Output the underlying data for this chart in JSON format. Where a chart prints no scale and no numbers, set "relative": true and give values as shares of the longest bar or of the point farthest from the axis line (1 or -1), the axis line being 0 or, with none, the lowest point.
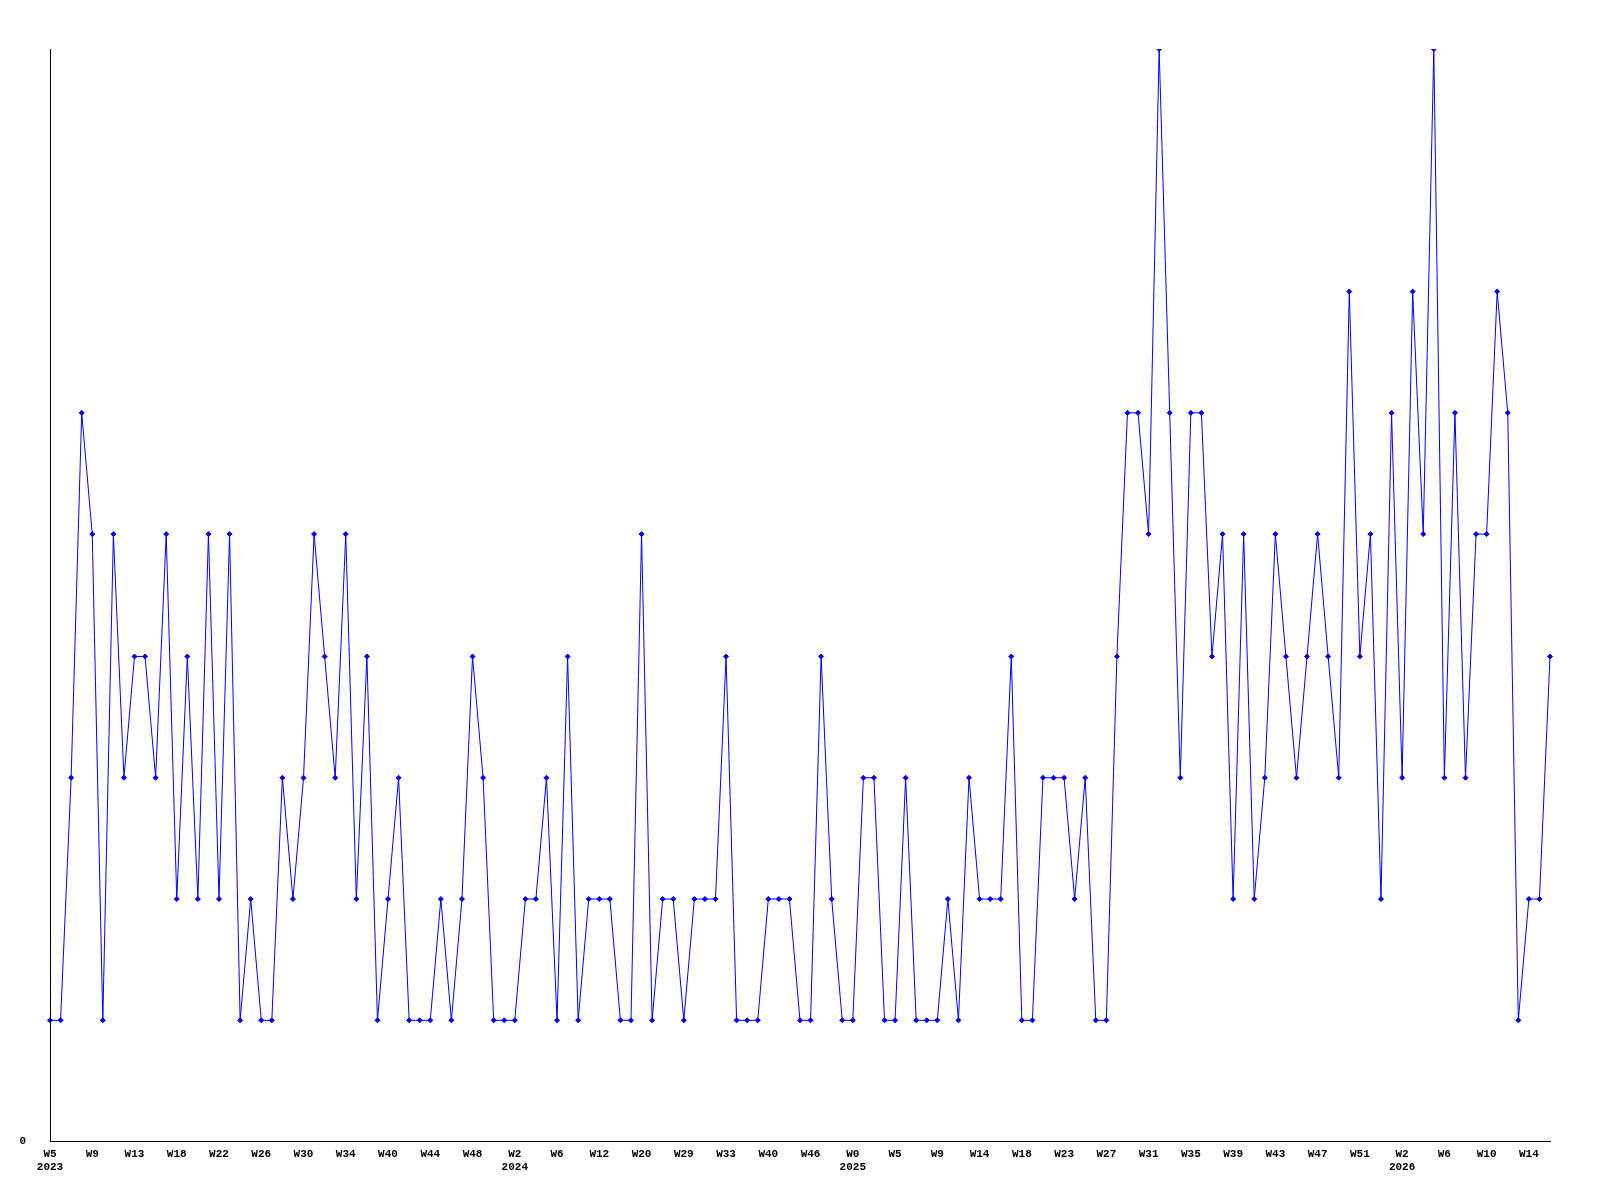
{
  "chart_data": {
    "type": "line",
    "relative": true,
    "color": "#0000ff",
    "marker": "diamond",
    "grid": false,
    "annotations": [
      "0"
    ],
    "categories": [
      "W5\n2023",
      null,
      null,
      null,
      "W9",
      null,
      null,
      null,
      "W13",
      null,
      null,
      null,
      "W18",
      null,
      null,
      null,
      "W22",
      null,
      null,
      null,
      "W26",
      null,
      null,
      null,
      "W30",
      null,
      null,
      null,
      "W34",
      null,
      null,
      null,
      "W40",
      null,
      null,
      null,
      "W44",
      null,
      null,
      null,
      "W48",
      null,
      null,
      null,
      "W2\n2024",
      null,
      null,
      null,
      "W6",
      null,
      null,
      null,
      "W12",
      null,
      null,
      null,
      "W20",
      null,
      null,
      null,
      "W29",
      null,
      null,
      null,
      "W33",
      null,
      null,
      null,
      "W40",
      null,
      null,
      null,
      "W46",
      null,
      null,
      null,
      "W0\n2025",
      null,
      null,
      null,
      "W5",
      null,
      null,
      null,
      "W9",
      null,
      null,
      null,
      "W14",
      null,
      null,
      null,
      "W18",
      null,
      null,
      null,
      "W23",
      null,
      null,
      null,
      "W27",
      null,
      null,
      null,
      "W31",
      null,
      null,
      null,
      "W35",
      null,
      null,
      null,
      "W39",
      null,
      null,
      null,
      "W43",
      null,
      null,
      null,
      "W47",
      null,
      null,
      null,
      "W51",
      null,
      null,
      null,
      "W2\n2026",
      null,
      null,
      null,
      "W6",
      null,
      null,
      null,
      "W10",
      null,
      null,
      null,
      "W14",
      null,
      null
    ],
    "values": [
      0.111,
      0.111,
      0.333,
      0.667,
      0.556,
      0.111,
      0.556,
      0.333,
      0.444,
      0.444,
      0.333,
      0.556,
      0.222,
      0.444,
      0.222,
      0.556,
      0.222,
      0.556,
      0.111,
      0.222,
      0.111,
      0.111,
      0.333,
      0.222,
      0.333,
      0.556,
      0.444,
      0.333,
      0.556,
      0.222,
      0.444,
      0.111,
      0.222,
      0.333,
      0.111,
      0.111,
      0.111,
      0.222,
      0.111,
      0.222,
      0.444,
      0.333,
      0.111,
      0.111,
      0.111,
      0.222,
      0.222,
      0.333,
      0.111,
      0.444,
      0.111,
      0.222,
      0.222,
      0.222,
      0.111,
      0.111,
      0.556,
      0.111,
      0.222,
      0.222,
      0.111,
      0.222,
      0.222,
      0.222,
      0.444,
      0.111,
      0.111,
      0.111,
      0.222,
      0.222,
      0.222,
      0.111,
      0.111,
      0.444,
      0.222,
      0.111,
      0.111,
      0.333,
      0.333,
      0.111,
      0.111,
      0.333,
      0.111,
      0.111,
      0.111,
      0.222,
      0.111,
      0.333,
      0.222,
      0.222,
      0.222,
      0.444,
      0.111,
      0.111,
      0.333,
      0.333,
      0.333,
      0.222,
      0.333,
      0.111,
      0.111,
      0.444,
      0.667,
      0.667,
      0.556,
      1,
      0.667,
      0.333,
      0.667,
      0.667,
      0.444,
      0.556,
      0.222,
      0.556,
      0.222,
      0.333,
      0.556,
      0.444,
      0.333,
      0.444,
      0.556,
      0.444,
      0.333,
      0.778,
      0.444,
      0.556,
      0.222,
      0.667,
      0.333,
      0.778,
      0.556,
      1,
      0.333,
      0.667,
      0.333,
      0.556,
      0.556,
      0.778,
      0.667,
      0.111,
      0.222,
      0.222,
      0.444
    ]
  }
}
